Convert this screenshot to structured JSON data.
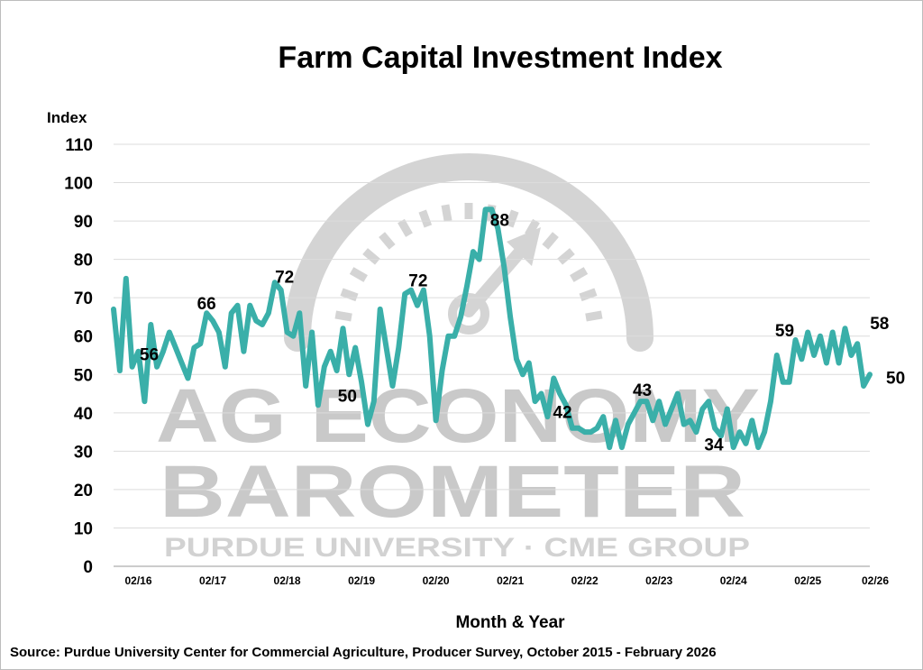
{
  "chart_data": {
    "type": "line",
    "title": "Farm Capital Investment Index",
    "ylabel": "Index",
    "xlabel": "Month & Year",
    "source": "Source: Purdue University Center for Commercial Agriculture, Producer Survey, October 2015 - February 2026",
    "ylim": [
      0,
      110
    ],
    "yticks": [
      0,
      10,
      20,
      30,
      40,
      50,
      60,
      70,
      80,
      90,
      100,
      110
    ],
    "x_tick_labels": [
      "02/16",
      "02/17",
      "02/18",
      "02/19",
      "02/20",
      "02/21",
      "02/22",
      "02/23",
      "02/24",
      "02/25",
      "02/26"
    ],
    "x_start": "2015-10",
    "grid": true,
    "color": "#3AAFA9",
    "series": [
      {
        "name": "",
        "values": [
          67,
          51,
          75,
          52,
          56,
          43,
          63,
          52,
          56,
          61,
          57,
          53,
          49,
          57,
          58,
          66,
          64,
          61,
          52,
          66,
          68,
          56,
          68,
          64,
          63,
          66,
          74,
          72,
          61,
          60,
          66,
          47,
          61,
          42,
          52,
          56,
          51,
          62,
          50,
          57,
          48,
          37,
          43,
          67,
          57,
          47,
          57,
          71,
          72,
          68,
          72,
          60,
          38,
          51,
          60,
          60,
          65,
          73,
          82,
          80,
          93,
          93,
          88,
          78,
          65,
          54,
          50,
          53,
          43,
          45,
          39,
          49,
          45,
          42,
          36,
          36,
          35,
          35,
          36,
          39,
          31,
          38,
          31,
          37,
          40,
          43,
          43,
          38,
          43,
          37,
          41,
          45,
          37,
          38,
          35,
          41,
          43,
          36,
          34,
          41,
          31,
          35,
          32,
          38,
          31,
          35,
          43,
          55,
          48,
          48,
          59,
          54,
          61,
          55,
          60,
          53,
          61,
          53,
          62,
          55,
          58,
          47,
          50
        ]
      }
    ],
    "data_labels": [
      {
        "text": "56",
        "index": 4
      },
      {
        "text": "66",
        "index": 15
      },
      {
        "text": "72",
        "index": 27
      },
      {
        "text": "50",
        "index": 38
      },
      {
        "text": "72",
        "index": 50
      },
      {
        "text": "88",
        "index": 62
      },
      {
        "text": "42",
        "index": 73
      },
      {
        "text": "43",
        "index": 85
      },
      {
        "text": "34",
        "index": 98
      },
      {
        "text": "59",
        "index": 110
      },
      {
        "text": "58",
        "index": 120
      },
      {
        "text": "50",
        "index": 122
      }
    ]
  },
  "watermark": {
    "line1": "AG ECONOMY",
    "line2": "BAROMETER",
    "line3": "PURDUE UNIVERSITY · CME GROUP"
  }
}
